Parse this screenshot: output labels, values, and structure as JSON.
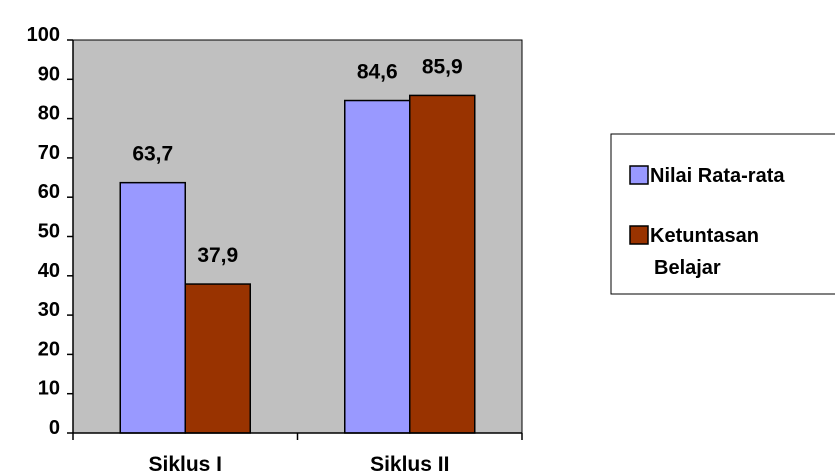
{
  "chart_data": {
    "type": "bar",
    "categories": [
      "Siklus I",
      "Siklus II"
    ],
    "series": [
      {
        "name": "Nilai Rata-rata",
        "values": [
          63.7,
          84.6
        ],
        "labels": [
          "63,7",
          "84,6"
        ],
        "color": "#9999ff"
      },
      {
        "name": "Ketuntasan Belajar",
        "values": [
          37.9,
          85.9
        ],
        "labels": [
          "37,9",
          "85,9"
        ],
        "color": "#993300"
      }
    ],
    "yticks": [
      "0",
      "10",
      "20",
      "30",
      "40",
      "50",
      "60",
      "70",
      "80",
      "90",
      "100"
    ],
    "ylim": [
      0,
      100
    ],
    "plot_background": "#c0c0c0",
    "grid": false,
    "legend_position": "right",
    "legend_lines": [
      [
        "Nilai Rata-rata"
      ],
      [
        "Ketuntasan",
        "Belajar"
      ]
    ]
  }
}
